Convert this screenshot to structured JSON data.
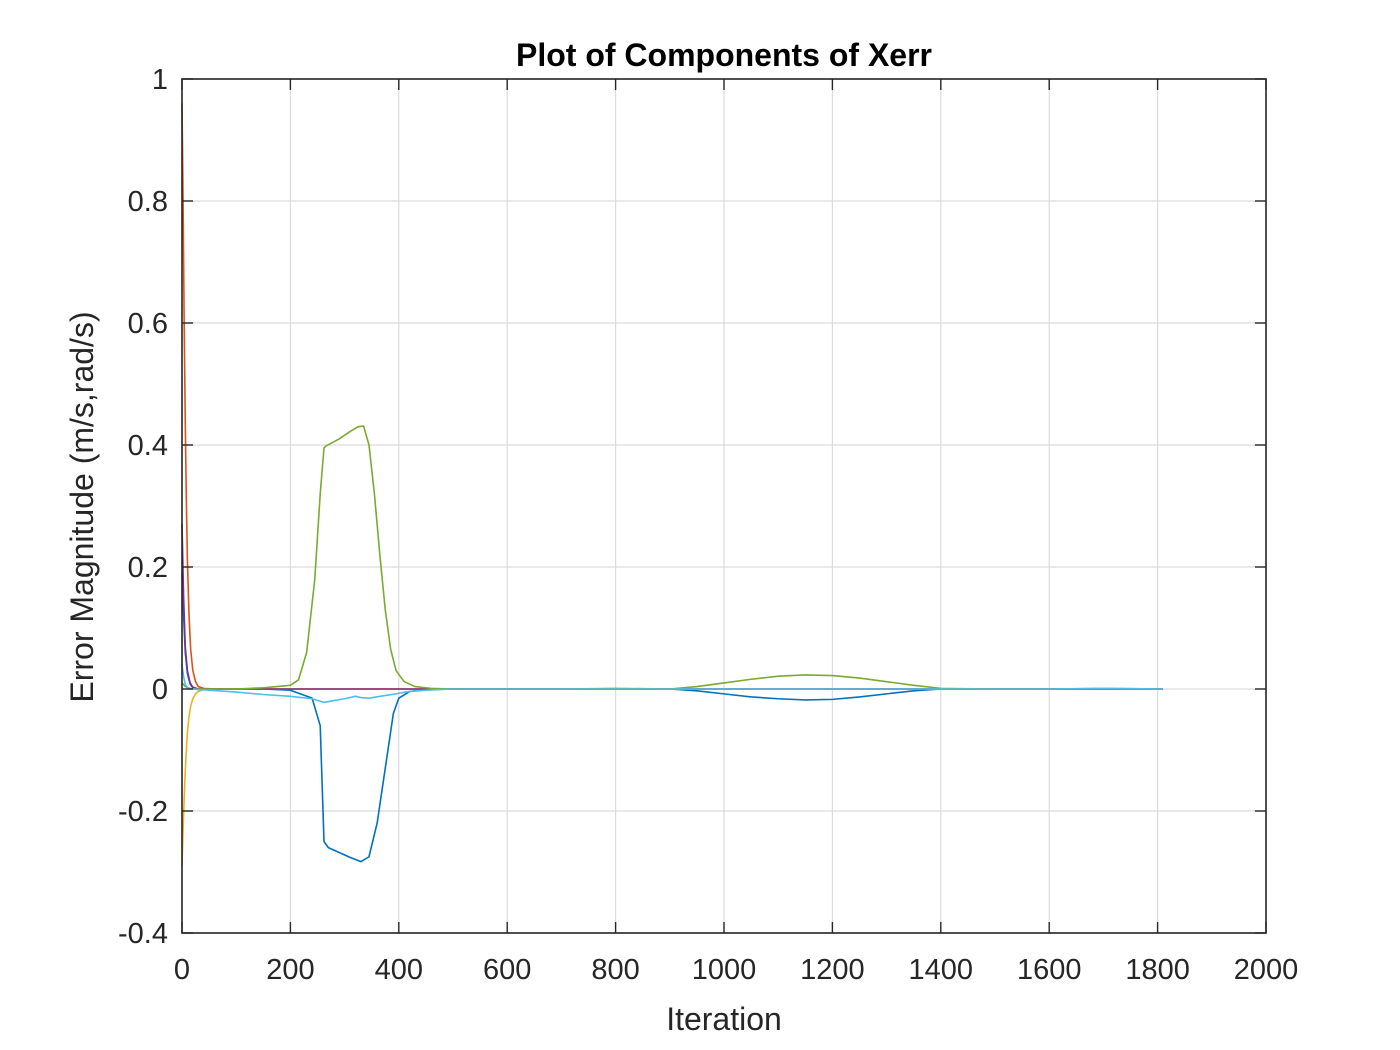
{
  "chart_data": {
    "type": "line",
    "title": "Plot of Components of Xerr",
    "xlabel": "Iteration",
    "ylabel": "Error Magnitude (m/s,rad/s)",
    "xlim": [
      0,
      2000
    ],
    "ylim": [
      -0.4,
      1
    ],
    "xticks": [
      0,
      200,
      400,
      600,
      800,
      1000,
      1200,
      1400,
      1600,
      1800,
      2000
    ],
    "yticks": [
      -0.4,
      -0.2,
      0,
      0.2,
      0.4,
      0.6,
      0.8,
      1
    ],
    "xtick_labels": [
      "0",
      "200",
      "400",
      "600",
      "800",
      "1000",
      "1200",
      "1400",
      "1600",
      "1800",
      "2000"
    ],
    "ytick_labels": [
      "-0.4",
      "-0.2",
      "0",
      "0.2",
      "0.4",
      "0.6",
      "0.8",
      "1"
    ],
    "grid": true,
    "series": [
      {
        "color": "#0072BD",
        "x": [
          0,
          3,
          6,
          10,
          15,
          20,
          30,
          50,
          100,
          150,
          200,
          240,
          255,
          262,
          270,
          290,
          310,
          330,
          345,
          360,
          375,
          390,
          400,
          420,
          450,
          500,
          600,
          700,
          800,
          900,
          950,
          1000,
          1050,
          1100,
          1150,
          1200,
          1250,
          1300,
          1350,
          1400,
          1500,
          1600,
          1700,
          1800,
          1810
        ],
        "y": [
          0.19,
          0.12,
          0.06,
          0.025,
          0.008,
          0.002,
          0.0,
          0.0,
          0.0,
          0.0,
          -0.002,
          -0.015,
          -0.06,
          -0.25,
          -0.26,
          -0.268,
          -0.276,
          -0.283,
          -0.275,
          -0.22,
          -0.13,
          -0.04,
          -0.015,
          -0.004,
          -0.001,
          0.0,
          0.0,
          0.0,
          0.0,
          0.0,
          -0.003,
          -0.008,
          -0.013,
          -0.016,
          -0.018,
          -0.017,
          -0.013,
          -0.008,
          -0.003,
          0.0,
          0.0,
          0.0,
          0.0,
          0.0,
          0.0
        ]
      },
      {
        "color": "#D95319",
        "x": [
          0,
          2,
          4,
          6,
          8,
          10,
          13,
          16,
          20,
          25,
          30,
          40,
          60,
          100,
          1810
        ],
        "y": [
          0.96,
          0.8,
          0.6,
          0.44,
          0.31,
          0.21,
          0.12,
          0.065,
          0.03,
          0.012,
          0.004,
          0.001,
          0.0,
          0.0,
          0.0
        ]
      },
      {
        "color": "#EDB120",
        "x": [
          0,
          2,
          4,
          6,
          8,
          10,
          13,
          16,
          20,
          25,
          30,
          40,
          60,
          100,
          1810
        ],
        "y": [
          -0.29,
          -0.23,
          -0.18,
          -0.135,
          -0.1,
          -0.07,
          -0.045,
          -0.028,
          -0.016,
          -0.008,
          -0.004,
          -0.001,
          0.0,
          0.0,
          0.0
        ]
      },
      {
        "color": "#7E2F8E",
        "x": [
          0,
          3,
          6,
          10,
          15,
          20,
          30,
          50,
          100,
          1810
        ],
        "y": [
          0.27,
          0.15,
          0.07,
          0.03,
          0.01,
          0.003,
          0.0,
          0.0,
          0.0,
          0.0
        ]
      },
      {
        "color": "#77AC30",
        "x": [
          0,
          5,
          10,
          20,
          40,
          100,
          150,
          200,
          215,
          230,
          245,
          255,
          262,
          265,
          290,
          310,
          325,
          335,
          345,
          355,
          365,
          375,
          385,
          395,
          410,
          430,
          460,
          500,
          600,
          700,
          800,
          900,
          950,
          1000,
          1050,
          1100,
          1150,
          1200,
          1250,
          1300,
          1350,
          1400,
          1500,
          1600,
          1700,
          1800,
          1810
        ],
        "y": [
          0.01,
          0.005,
          0.002,
          0.0,
          0.0,
          0.0,
          0.002,
          0.006,
          0.015,
          0.06,
          0.18,
          0.32,
          0.395,
          0.398,
          0.41,
          0.422,
          0.43,
          0.431,
          0.4,
          0.32,
          0.22,
          0.13,
          0.065,
          0.03,
          0.012,
          0.004,
          0.001,
          0.0,
          0.0,
          0.0,
          0.001,
          0.0,
          0.004,
          0.01,
          0.016,
          0.021,
          0.023,
          0.022,
          0.018,
          0.012,
          0.006,
          0.001,
          0.0,
          0.0,
          0.001,
          0.0,
          0.0
        ]
      },
      {
        "color": "#4DBEEE",
        "x": [
          0,
          3,
          6,
          10,
          15,
          20,
          30,
          50,
          100,
          150,
          200,
          240,
          262,
          280,
          300,
          320,
          330,
          345,
          365,
          380,
          395,
          400,
          420,
          450,
          500,
          600,
          700,
          800,
          900,
          1000,
          1200,
          1400,
          1600,
          1700,
          1800,
          1810
        ],
        "y": [
          0.04,
          0.02,
          0.008,
          0.002,
          0.0,
          0.0,
          -0.001,
          -0.002,
          -0.005,
          -0.009,
          -0.012,
          -0.016,
          -0.022,
          -0.019,
          -0.016,
          -0.012,
          -0.014,
          -0.015,
          -0.012,
          -0.01,
          -0.008,
          -0.007,
          -0.004,
          -0.002,
          0.0,
          0.0,
          0.0,
          0.0,
          0.0,
          0.0,
          0.0,
          0.0,
          0.0,
          0.001,
          0.0,
          0.0
        ]
      }
    ]
  }
}
